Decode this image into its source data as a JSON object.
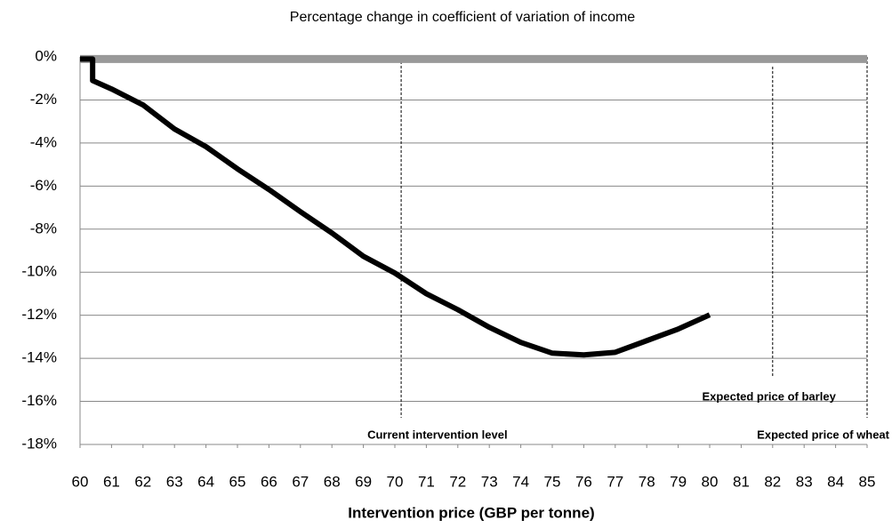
{
  "chart_data": {
    "type": "line",
    "title": "Percentage change in coefficient of variation of income",
    "xlabel": "Intervention price (GBP per tonne)",
    "xlim": [
      60,
      85
    ],
    "xticks": [
      60,
      61,
      62,
      63,
      64,
      65,
      66,
      67,
      68,
      69,
      70,
      71,
      72,
      73,
      74,
      75,
      76,
      77,
      78,
      79,
      80,
      81,
      82,
      83,
      84,
      85
    ],
    "ylim": [
      -18,
      0
    ],
    "yticks": [
      {
        "value": 0,
        "label": "0%"
      },
      {
        "value": -2,
        "label": "-2%"
      },
      {
        "value": -4,
        "label": "-4%"
      },
      {
        "value": -6,
        "label": "-6%"
      },
      {
        "value": -8,
        "label": "-8%"
      },
      {
        "value": -10,
        "label": "-10%"
      },
      {
        "value": -12,
        "label": "-12%"
      },
      {
        "value": -14,
        "label": "-14%"
      },
      {
        "value": -16,
        "label": "-16%"
      },
      {
        "value": -18,
        "label": "-18%"
      }
    ],
    "grid": true,
    "series": [
      {
        "color": "#999999",
        "x": [
          60,
          85
        ],
        "values": [
          -0.1,
          -0.1
        ]
      },
      {
        "color": "#000000",
        "x": [
          60,
          60.4,
          60.4,
          61,
          62,
          63,
          64,
          65,
          66,
          67,
          68,
          69,
          70,
          71,
          72,
          73,
          74,
          75,
          76,
          77,
          78,
          79,
          80
        ],
        "values": [
          -0.1,
          -0.1,
          -1.1,
          -1.49,
          -2.23,
          -3.35,
          -4.17,
          -5.2,
          -6.16,
          -7.19,
          -8.18,
          -9.26,
          -10.04,
          -11.0,
          -11.74,
          -12.56,
          -13.26,
          -13.76,
          -13.84,
          -13.72,
          -13.18,
          -12.64,
          -11.98
        ]
      }
    ],
    "annotations": [
      {
        "text": "Current intervention level",
        "x": 70.2
      },
      {
        "text": "Expected price of barley",
        "x": 82
      },
      {
        "text": "Expected price of wheat",
        "x": 85
      }
    ]
  }
}
